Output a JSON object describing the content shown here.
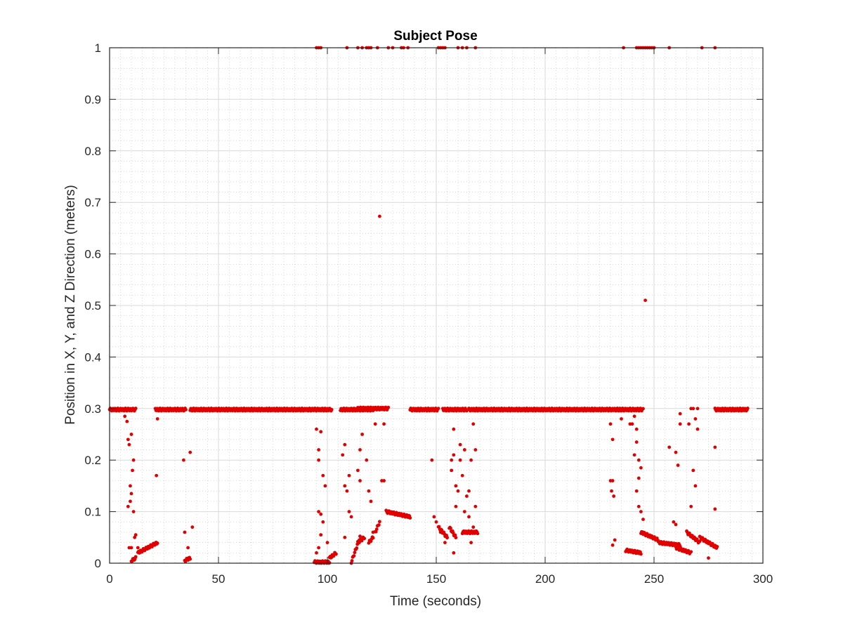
{
  "chart_data": {
    "type": "scatter",
    "title": "Subject Pose",
    "xlabel": "Time (seconds)",
    "ylabel": "Position in X, Y, and Z Direction (meters)",
    "xlim": [
      0,
      300
    ],
    "ylim": [
      0,
      1
    ],
    "xticks": [
      "0",
      "50",
      "100",
      "150",
      "200",
      "250",
      "300"
    ],
    "yticks": [
      "0",
      "0.1",
      "0.2",
      "0.3",
      "0.4",
      "0.5",
      "0.6",
      "0.7",
      "0.8",
      "0.9",
      "1"
    ],
    "grid": true,
    "minor_grid": true,
    "marker_color": "#e00000",
    "series": [
      {
        "segments": [
          {
            "x0": 0,
            "x1": 12,
            "y0": 0.298,
            "y1": 0.298
          },
          {
            "x0": 21,
            "x1": 35,
            "y0": 0.298,
            "y1": 0.298
          },
          {
            "x0": 37,
            "x1": 94,
            "y0": 0.298,
            "y1": 0.298
          },
          {
            "x0": 94,
            "x1": 102,
            "y0": 0.298,
            "y1": 0.298
          },
          {
            "x0": 106,
            "x1": 121,
            "y0": 0.298,
            "y1": 0.298
          },
          {
            "x0": 114,
            "x1": 128,
            "y0": 0.3,
            "y1": 0.3
          },
          {
            "x0": 138,
            "x1": 151,
            "y0": 0.298,
            "y1": 0.298
          },
          {
            "x0": 153,
            "x1": 164,
            "y0": 0.298,
            "y1": 0.298
          },
          {
            "x0": 165,
            "x1": 235,
            "y0": 0.298,
            "y1": 0.298
          },
          {
            "x0": 233,
            "x1": 245,
            "y0": 0.298,
            "y1": 0.298
          },
          {
            "x0": 278,
            "x1": 293,
            "y0": 0.298,
            "y1": 0.298
          },
          {
            "x0": 10,
            "x1": 12,
            "y0": 0.005,
            "y1": 0.01
          },
          {
            "x0": 13,
            "x1": 22,
            "y0": 0.02,
            "y1": 0.04
          },
          {
            "x0": 34.5,
            "x1": 37,
            "y0": 0.005,
            "y1": 0.01
          },
          {
            "x0": 94,
            "x1": 101,
            "y0": 0.002,
            "y1": 0.002
          },
          {
            "x0": 101,
            "x1": 104,
            "y0": 0.01,
            "y1": 0.02
          },
          {
            "x0": 111,
            "x1": 115,
            "y0": 0.002,
            "y1": 0.05
          },
          {
            "x0": 114,
            "x1": 117,
            "y0": 0.04,
            "y1": 0.05
          },
          {
            "x0": 119,
            "x1": 121,
            "y0": 0.04,
            "y1": 0.05
          },
          {
            "x0": 122,
            "x1": 124,
            "y0": 0.06,
            "y1": 0.08
          },
          {
            "x0": 127,
            "x1": 138,
            "y0": 0.1,
            "y1": 0.09
          },
          {
            "x0": 151,
            "x1": 155,
            "y0": 0.07,
            "y1": 0.05
          },
          {
            "x0": 156,
            "x1": 159,
            "y0": 0.07,
            "y1": 0.05
          },
          {
            "x0": 162,
            "x1": 169,
            "y0": 0.06,
            "y1": 0.06
          },
          {
            "x0": 237,
            "x1": 244,
            "y0": 0.025,
            "y1": 0.02
          },
          {
            "x0": 244,
            "x1": 252,
            "y0": 0.06,
            "y1": 0.045
          },
          {
            "x0": 252,
            "x1": 262,
            "y0": 0.04,
            "y1": 0.035
          },
          {
            "x0": 260,
            "x1": 267,
            "y0": 0.03,
            "y1": 0.02
          },
          {
            "x0": 265,
            "x1": 271,
            "y0": 0.06,
            "y1": 0.04
          },
          {
            "x0": 271,
            "x1": 279,
            "y0": 0.05,
            "y1": 0.03
          }
        ],
        "points": [
          [
            95,
            1
          ],
          [
            96,
            1
          ],
          [
            97,
            1
          ],
          [
            109,
            1
          ],
          [
            114,
            1
          ],
          [
            116,
            1
          ],
          [
            118,
            1
          ],
          [
            119,
            1
          ],
          [
            120,
            1
          ],
          [
            123,
            1
          ],
          [
            128,
            1
          ],
          [
            130,
            1
          ],
          [
            134,
            1
          ],
          [
            135,
            1
          ],
          [
            137,
            1
          ],
          [
            151,
            1
          ],
          [
            152,
            1
          ],
          [
            153,
            1
          ],
          [
            154,
            1
          ],
          [
            160,
            1
          ],
          [
            162,
            1
          ],
          [
            164,
            1
          ],
          [
            168,
            1
          ],
          [
            236,
            1
          ],
          [
            242,
            1
          ],
          [
            243,
            1
          ],
          [
            244,
            1
          ],
          [
            245,
            1
          ],
          [
            246,
            1
          ],
          [
            247,
            1
          ],
          [
            248,
            1
          ],
          [
            249,
            1
          ],
          [
            250,
            1
          ],
          [
            257,
            1
          ],
          [
            272,
            1
          ],
          [
            278,
            1
          ],
          [
            124,
            0.673
          ],
          [
            246,
            0.51
          ],
          [
            7,
            0.285
          ],
          [
            8,
            0.275
          ],
          [
            8.5,
            0.24
          ],
          [
            9,
            0.23
          ],
          [
            10,
            0.25
          ],
          [
            11,
            0.2
          ],
          [
            10.5,
            0.18
          ],
          [
            9.5,
            0.15
          ],
          [
            10,
            0.135
          ],
          [
            9.5,
            0.12
          ],
          [
            11,
            0.1
          ],
          [
            8.5,
            0.11
          ],
          [
            12,
            0.055
          ],
          [
            11.5,
            0.05
          ],
          [
            9,
            0.03
          ],
          [
            10,
            0.03
          ],
          [
            13,
            0.03
          ],
          [
            21.5,
            0.17
          ],
          [
            22,
            0.28
          ],
          [
            34,
            0.2
          ],
          [
            34.5,
            0.06
          ],
          [
            36,
            0.03
          ],
          [
            37,
            0.215
          ],
          [
            38,
            0.07
          ],
          [
            95,
            0.26
          ],
          [
            97,
            0.255
          ],
          [
            96,
            0.22
          ],
          [
            96,
            0.2
          ],
          [
            98,
            0.17
          ],
          [
            99,
            0.15
          ],
          [
            96,
            0.1
          ],
          [
            97,
            0.095
          ],
          [
            98,
            0.08
          ],
          [
            97,
            0.055
          ],
          [
            96,
            0.03
          ],
          [
            95,
            0.02
          ],
          [
            100,
            0.04
          ],
          [
            108,
            0.23
          ],
          [
            107,
            0.21
          ],
          [
            108,
            0.15
          ],
          [
            110,
            0.17
          ],
          [
            109,
            0.14
          ],
          [
            110,
            0.1
          ],
          [
            108,
            0.05
          ],
          [
            111,
            0.09
          ],
          [
            114,
            0.18
          ],
          [
            115,
            0.22
          ],
          [
            116,
            0.25
          ],
          [
            115,
            0.16
          ],
          [
            118,
            0.2
          ],
          [
            119,
            0.14
          ],
          [
            120,
            0.12
          ],
          [
            121,
            0.06
          ],
          [
            122,
            0.27
          ],
          [
            125,
            0.16
          ],
          [
            126,
            0.16
          ],
          [
            126,
            0.27
          ],
          [
            148,
            0.2
          ],
          [
            149,
            0.09
          ],
          [
            150,
            0.08
          ],
          [
            152,
            0.06
          ],
          [
            157,
            0.2
          ],
          [
            157,
            0.18
          ],
          [
            158,
            0.21
          ],
          [
            158,
            0.26
          ],
          [
            159,
            0.15
          ],
          [
            159,
            0.11
          ],
          [
            160,
            0.14
          ],
          [
            161,
            0.23
          ],
          [
            161,
            0.2
          ],
          [
            162,
            0.17
          ],
          [
            163,
            0.22
          ],
          [
            163,
            0.1
          ],
          [
            164,
            0.13
          ],
          [
            165,
            0.09
          ],
          [
            165,
            0.14
          ],
          [
            166,
            0.2
          ],
          [
            167,
            0.27
          ],
          [
            168,
            0.22
          ],
          [
            168,
            0.11
          ],
          [
            167,
            0.07
          ],
          [
            166,
            0.04
          ],
          [
            158,
            0.02
          ],
          [
            155,
            0.05
          ],
          [
            154,
            0.04
          ],
          [
            230,
            0.27
          ],
          [
            231,
            0.24
          ],
          [
            230,
            0.16
          ],
          [
            231,
            0.16
          ],
          [
            230.5,
            0.14
          ],
          [
            231.5,
            0.13
          ],
          [
            231,
            0.035
          ],
          [
            232,
            0.045
          ],
          [
            235,
            0.28
          ],
          [
            239,
            0.27
          ],
          [
            240,
            0.27
          ],
          [
            241,
            0.285
          ],
          [
            242,
            0.26
          ],
          [
            242,
            0.235
          ],
          [
            243,
            0.2
          ],
          [
            241,
            0.21
          ],
          [
            243,
            0.165
          ],
          [
            244,
            0.185
          ],
          [
            242,
            0.14
          ],
          [
            243,
            0.11
          ],
          [
            244,
            0.1
          ],
          [
            245,
            0.085
          ],
          [
            245,
            0.06
          ],
          [
            257,
            0.225
          ],
          [
            260,
            0.215
          ],
          [
            261,
            0.19
          ],
          [
            262,
            0.27
          ],
          [
            262,
            0.29
          ],
          [
            259,
            0.08
          ],
          [
            260,
            0.075
          ],
          [
            266,
            0.27
          ],
          [
            267,
            0.3
          ],
          [
            268,
            0.3
          ],
          [
            269,
            0.28
          ],
          [
            268,
            0.18
          ],
          [
            269,
            0.15
          ],
          [
            270,
            0.26
          ],
          [
            270,
            0.3
          ],
          [
            267,
            0.11
          ],
          [
            275,
            0.01
          ],
          [
            278,
            0.225
          ],
          [
            278,
            0.105
          ]
        ]
      }
    ]
  }
}
